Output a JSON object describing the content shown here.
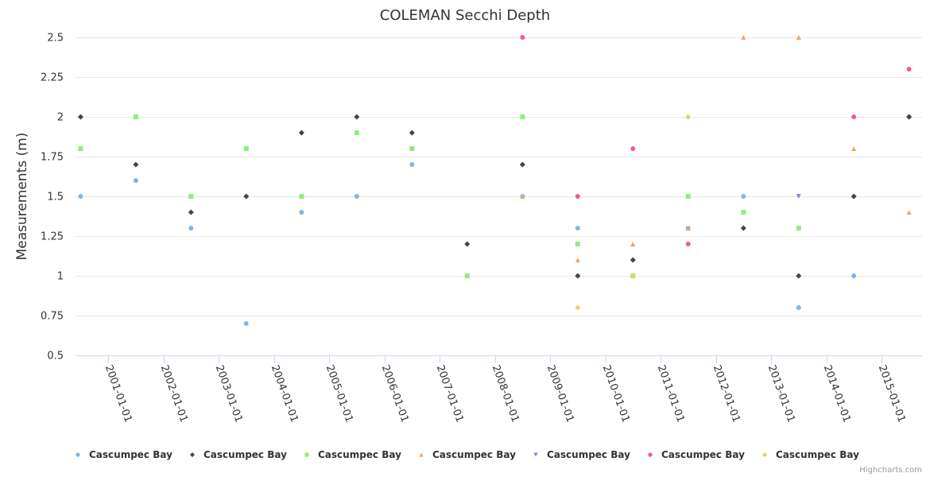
{
  "chart_data": {
    "type": "scatter",
    "title": "COLEMAN Secchi Depth",
    "xlabel": "",
    "ylabel": "Measurements (m)",
    "ylim": [
      0.5,
      2.5
    ],
    "yticks": [
      0.5,
      0.75,
      1,
      1.25,
      1.5,
      1.75,
      2,
      2.25,
      2.5
    ],
    "ytick_labels": [
      "0.5",
      "0.75",
      "1",
      "1.25",
      "1.5",
      "1.75",
      "2",
      "2.25",
      "2.5"
    ],
    "xlim": [
      "2000-05-28",
      "2015-09-25"
    ],
    "xticks": [
      "2001-01-01",
      "2002-01-01",
      "2003-01-01",
      "2004-01-01",
      "2005-01-01",
      "2006-01-01",
      "2007-01-01",
      "2008-01-01",
      "2009-01-01",
      "2010-01-01",
      "2011-01-01",
      "2012-01-01",
      "2013-01-01",
      "2014-01-01",
      "2015-01-01"
    ],
    "grid": true,
    "legend_position": "bottom",
    "credits": "Highcharts.com",
    "series": [
      {
        "name": "Cascumpec Bay",
        "color": "#7cb5ec",
        "marker": "circle",
        "points": [
          [
            "2000-07-01",
            1.5
          ],
          [
            "2001-07-01",
            1.6
          ],
          [
            "2002-07-01",
            1.3
          ],
          [
            "2003-07-01",
            0.7
          ],
          [
            "2004-07-01",
            1.4
          ],
          [
            "2005-07-01",
            1.5
          ],
          [
            "2006-07-01",
            1.7
          ],
          [
            "2008-07-01",
            1.5
          ],
          [
            "2009-07-01",
            1.3
          ],
          [
            "2011-07-01",
            1.3
          ],
          [
            "2012-07-01",
            1.5
          ],
          [
            "2013-07-01",
            0.8
          ],
          [
            "2014-07-01",
            1.0
          ],
          [
            "2015-07-01",
            2.0
          ]
        ]
      },
      {
        "name": "Cascumpec Bay",
        "color": "#434348",
        "marker": "diamond",
        "points": [
          [
            "2000-07-01",
            2.0
          ],
          [
            "2001-07-01",
            1.7
          ],
          [
            "2002-07-01",
            1.4
          ],
          [
            "2003-07-01",
            1.5
          ],
          [
            "2004-07-01",
            1.9
          ],
          [
            "2005-07-01",
            2.0
          ],
          [
            "2006-07-01",
            1.9
          ],
          [
            "2007-07-01",
            1.2
          ],
          [
            "2008-07-01",
            1.7
          ],
          [
            "2009-07-01",
            1.0
          ],
          [
            "2010-07-01",
            1.1
          ],
          [
            "2012-07-01",
            1.3
          ],
          [
            "2013-07-01",
            1.0
          ],
          [
            "2014-07-01",
            1.5
          ],
          [
            "2015-07-01",
            2.0
          ]
        ]
      },
      {
        "name": "Cascumpec Bay",
        "color": "#90ed7d",
        "marker": "square",
        "points": [
          [
            "2000-07-01",
            1.8
          ],
          [
            "2001-07-01",
            2.0
          ],
          [
            "2002-07-01",
            1.5
          ],
          [
            "2003-07-01",
            1.8
          ],
          [
            "2004-07-01",
            1.5
          ],
          [
            "2005-07-01",
            1.9
          ],
          [
            "2006-07-01",
            1.8
          ],
          [
            "2007-07-01",
            1.0
          ],
          [
            "2008-07-01",
            2.0
          ],
          [
            "2009-07-01",
            1.2
          ],
          [
            "2010-07-01",
            1.0
          ],
          [
            "2011-07-01",
            1.5
          ],
          [
            "2012-07-01",
            1.4
          ],
          [
            "2013-07-01",
            1.3
          ]
        ]
      },
      {
        "name": "Cascumpec Bay",
        "color": "#f7a35c",
        "marker": "triangle",
        "points": [
          [
            "2008-07-01",
            1.5
          ],
          [
            "2009-07-01",
            1.1
          ],
          [
            "2010-07-01",
            1.2
          ],
          [
            "2011-07-01",
            1.3
          ],
          [
            "2012-07-01",
            2.5
          ],
          [
            "2013-07-01",
            2.5
          ],
          [
            "2014-07-01",
            1.8
          ],
          [
            "2015-07-01",
            1.4
          ]
        ]
      },
      {
        "name": "Cascumpec Bay",
        "color": "#8085e9",
        "marker": "triangle-down",
        "points": [
          [
            "2013-07-01",
            1.5
          ]
        ]
      },
      {
        "name": "Cascumpec Bay",
        "color": "#f15c80",
        "marker": "circle",
        "points": [
          [
            "2008-07-01",
            2.5
          ],
          [
            "2009-07-01",
            1.5
          ],
          [
            "2010-07-01",
            1.8
          ],
          [
            "2011-07-01",
            1.2
          ],
          [
            "2014-07-01",
            2.0
          ],
          [
            "2015-07-01",
            2.3
          ]
        ]
      },
      {
        "name": "Cascumpec Bay",
        "color": "#e4d354",
        "marker": "diamond",
        "points": [
          [
            "2009-07-01",
            0.8
          ],
          [
            "2010-07-01",
            1.0
          ],
          [
            "2011-07-01",
            2.0
          ]
        ]
      }
    ]
  }
}
